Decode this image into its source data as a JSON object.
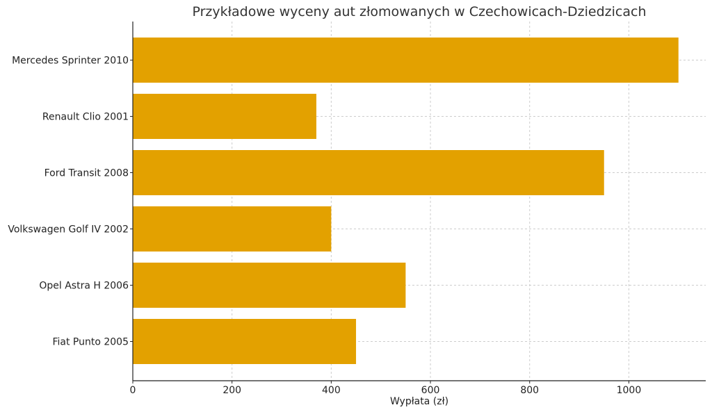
{
  "chart_data": {
    "type": "bar",
    "orientation": "horizontal",
    "title": "Przykładowe wyceny aut złomowanych w Czechowicach-Dziedzicach",
    "xlabel": "Wypłata (zł)",
    "ylabel": "",
    "categories": [
      "Mercedes Sprinter 2010",
      "Renault Clio 2001",
      "Ford Transit 2008",
      "Volkswagen Golf IV 2002",
      "Opel Astra H 2006",
      "Fiat Punto 2005"
    ],
    "values": [
      1100,
      370,
      950,
      400,
      550,
      450
    ],
    "xlim": [
      0,
      1155
    ],
    "xticks": [
      0,
      200,
      400,
      600,
      800,
      1000
    ],
    "grid": true,
    "bar_color": "#E3A100"
  }
}
